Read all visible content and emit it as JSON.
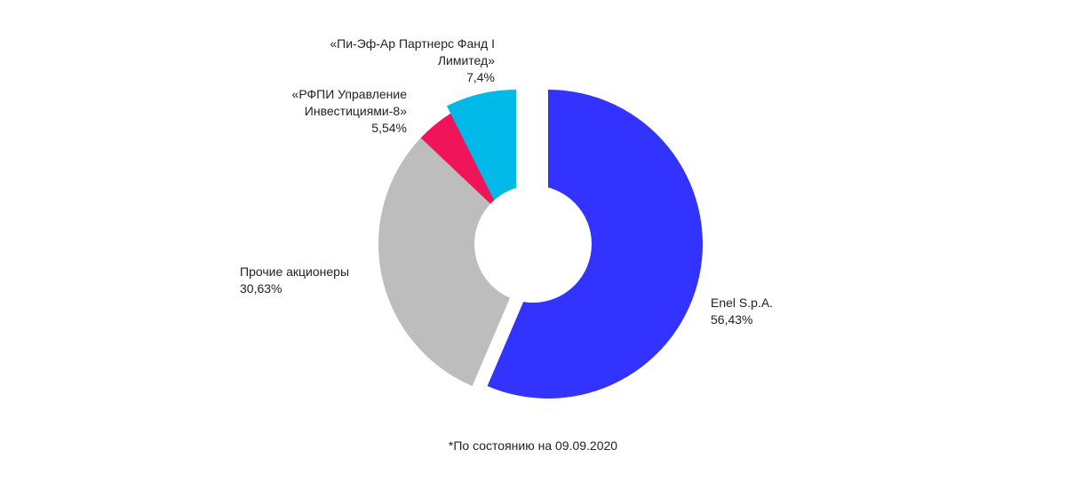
{
  "chart_data": {
    "type": "donut",
    "categories": [
      "Enel S.p.A.",
      "Прочие акционеры",
      "«РФПИ Управление Инвестициями-8»",
      "«Пи-Эф-Ар Партнерс Фанд I Лимитед»"
    ],
    "values": [
      56.43,
      30.63,
      5.54,
      7.4
    ],
    "value_labels": [
      "56,43%",
      "30,63%",
      "5,54%",
      "7,4%"
    ],
    "colors": [
      "#3333ff",
      "#bdbdbd",
      "#f0145a",
      "#00b9e8"
    ],
    "footnote": "*По состоянию на 09.09.2020"
  }
}
